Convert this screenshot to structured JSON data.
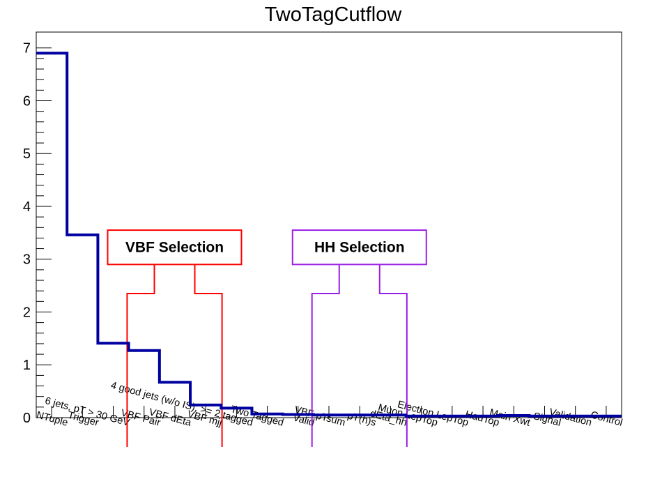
{
  "chart_data": {
    "type": "bar",
    "style": "step-histogram",
    "title": "TwoTagCutflow",
    "xlabel": "",
    "ylabel": "",
    "ylim": [
      0,
      7.3
    ],
    "yticks": [
      0,
      1,
      2,
      3,
      4,
      5,
      6,
      7
    ],
    "grid": false,
    "line_color": "#0000a0",
    "categories": [
      "NTuple",
      "Trigger",
      "6 jets, pT > 30 GeV",
      "VBF Pair",
      "VBF dEta",
      "VBF mjj",
      "4 good jets (w/o IS), >= 2 tagged",
      "Two Tagged",
      "Valid",
      "VBF pTsum",
      "pT(h)s",
      "dEta_hh",
      "Muon LepTop",
      "Electron LepTop",
      "HadTop",
      "Main Xwt",
      "Signal",
      "Validation",
      "Control"
    ],
    "values": [
      6.9,
      3.46,
      1.41,
      1.27,
      0.67,
      0.24,
      0.18,
      0.07,
      0.06,
      0.05,
      0.05,
      0.05,
      0.03,
      0.03,
      0.03,
      0.04,
      0.03,
      0.03,
      0.03
    ],
    "annotations": [
      {
        "label": "VBF Selection",
        "from_category": "VBF Pair",
        "to_category": "4 good jets (w/o IS), >= 2 tagged",
        "color": "#ff0000"
      },
      {
        "label": "HH Selection",
        "from_category": "VBF pTsum",
        "to_category": "Muon LepTop",
        "color": "#9a1fe6"
      }
    ]
  }
}
